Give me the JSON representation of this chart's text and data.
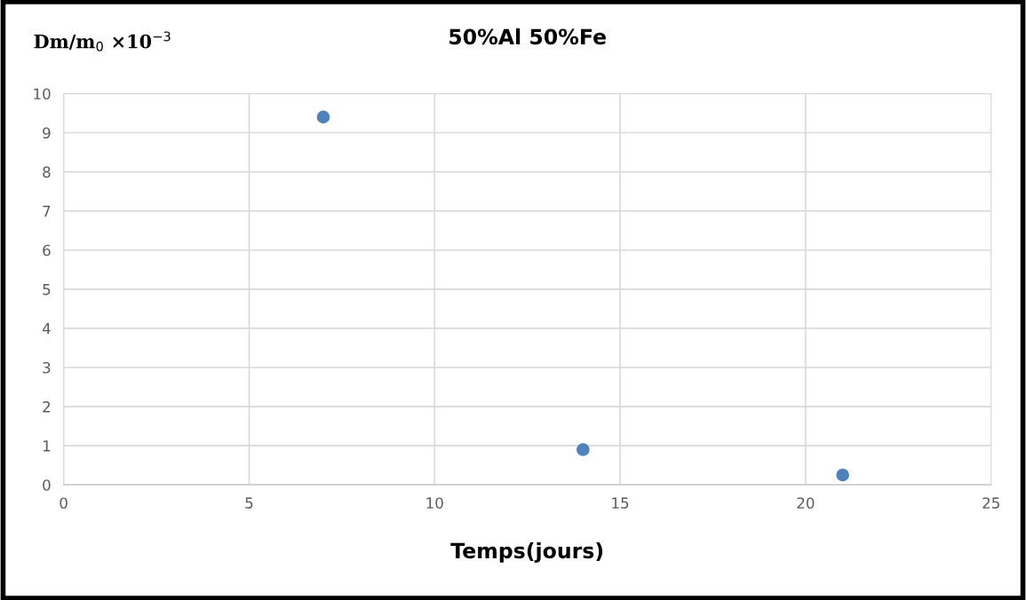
{
  "chart_data": {
    "type": "scatter",
    "title": "50%Al 50%Fe",
    "xlabel": "Temps(jours)",
    "ylabel": "Dm/m$_{0}$ ×10$^{−3}$",
    "x": [
      7,
      14,
      21
    ],
    "series": [
      {
        "color": "#4f81bd",
        "values": [
          9.4,
          0.9,
          0.25
        ]
      }
    ],
    "xlim": [
      0,
      25
    ],
    "xticks": [
      0,
      5,
      10,
      15,
      20,
      25
    ],
    "ylim": [
      0,
      10
    ],
    "yticks": [
      0,
      1,
      2,
      3,
      4,
      5,
      6,
      7,
      8,
      9,
      10
    ],
    "grid": true,
    "marker": "circle",
    "legend": false
  }
}
